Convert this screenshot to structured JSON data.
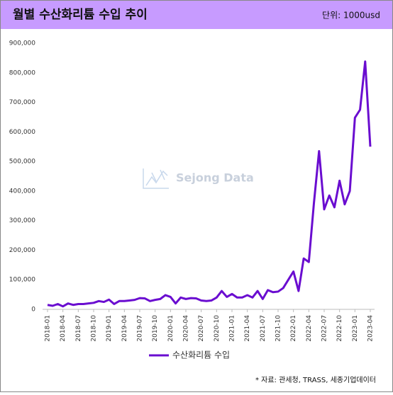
{
  "chart_data": {
    "type": "line",
    "title": "월별 수산화리튬 수입 추이",
    "unit_note": "단위: 1000usd",
    "source": "* 자료: 관세청, TRASS, 세종기업데이터",
    "watermark": "Sejong Data",
    "categories": [
      "2018-01",
      null,
      null,
      "2018-04",
      null,
      null,
      "2018-07",
      null,
      null,
      "2018-10",
      null,
      null,
      "2019-01",
      null,
      null,
      "2019-04",
      null,
      null,
      "2019-07",
      null,
      null,
      "2019-10",
      null,
      null,
      "2020-01",
      null,
      null,
      "2020-04",
      null,
      null,
      "2020-07",
      null,
      null,
      "2020-10",
      null,
      null,
      "2021-01",
      null,
      null,
      "2021-04",
      null,
      null,
      "2021-07",
      null,
      null,
      "2021-10",
      null,
      null,
      "2022-01",
      null,
      null,
      "2022-04",
      null,
      null,
      "2022-07",
      null,
      null,
      "2022-10",
      null,
      null,
      "2023-01",
      null,
      null,
      "2023-04"
    ],
    "series": [
      {
        "name": "수산화리튬 수입",
        "color": "#6a0dd0",
        "values": [
          15000,
          12000,
          18000,
          10000,
          20000,
          15000,
          18000,
          18000,
          20000,
          22000,
          28000,
          25000,
          33000,
          18000,
          28000,
          28000,
          30000,
          32000,
          38000,
          37000,
          28000,
          32000,
          35000,
          48000,
          42000,
          20000,
          40000,
          35000,
          38000,
          37000,
          30000,
          28000,
          30000,
          40000,
          62000,
          42000,
          52000,
          40000,
          40000,
          48000,
          40000,
          62000,
          35000,
          65000,
          58000,
          60000,
          72000,
          100000,
          128000,
          62000,
          172000,
          160000,
          360000,
          535000,
          338000,
          385000,
          345000,
          435000,
          355000,
          400000,
          648000,
          675000,
          838000,
          550000
        ]
      }
    ],
    "ylim": [
      0,
      900000
    ],
    "yticks": [
      0,
      {
        "value": 100000,
        "label": "100,000"
      },
      {
        "value": 200000,
        "label": "200,000"
      },
      {
        "value": 300000,
        "label": "300,000"
      },
      {
        "value": 400000,
        "label": "400,000"
      },
      {
        "value": 500000,
        "label": "500,000"
      },
      {
        "value": 600000,
        "label": "600,000"
      },
      {
        "value": 700000,
        "label": "700,000"
      },
      {
        "value": 800000,
        "label": "800,000"
      },
      {
        "value": 900000,
        "label": "900,000"
      }
    ],
    "grid": false,
    "legend": "bottom"
  }
}
